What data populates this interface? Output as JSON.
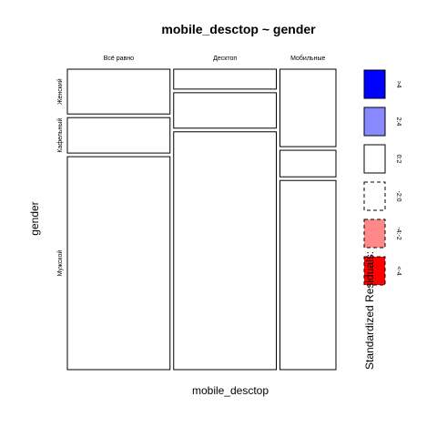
{
  "chart_data": {
    "type": "mosaic",
    "title": "mobile_desctop ~ gender",
    "xlabel": "mobile_desctop",
    "ylabel": "gender",
    "x_categories": [
      "Всё равно",
      "Десктоп",
      "Мобильные"
    ],
    "y_categories": [
      "Женский",
      "Кафельный",
      "Мужской"
    ],
    "x_proportions": [
      0.3333,
      0.3333,
      0.1818
    ],
    "cells": [
      {
        "x": "Всё равно",
        "y": "Женский",
        "proportion": 0.1528,
        "residual_band": "<-2:0"
      },
      {
        "x": "Всё равно",
        "y": "Кафельный",
        "proportion": 0.1208,
        "residual_band": "0:2"
      },
      {
        "x": "Всё равно",
        "y": "Мужской",
        "proportion": 0.7264,
        "residual_band": "<-2:0"
      },
      {
        "x": "Десктоп",
        "y": "Женский",
        "proportion": 0.0679,
        "residual_band": "<-2:0"
      },
      {
        "x": "Десктоп",
        "y": "Кафельный",
        "proportion": 0.1208,
        "residual_band": "0:2"
      },
      {
        "x": "Десктоп",
        "y": "Мужской",
        "proportion": 0.8113,
        "residual_band": "0:2"
      },
      {
        "x": "Мобильные",
        "y": "Женский",
        "proportion": 0.2642,
        "residual_band": "0:2"
      },
      {
        "x": "Мобильные",
        "y": "Кафельный",
        "proportion": 0.0906,
        "residual_band": "<-2:0"
      },
      {
        "x": "Мобильные",
        "y": "Мужской",
        "proportion": 0.6453,
        "residual_band": "<-2:0"
      }
    ],
    "legend": {
      "title": "Standardized Residuals:",
      "entries": [
        {
          "label": ">4",
          "color": "#0000ff",
          "dashed": false
        },
        {
          "label": "2:4",
          "color": "#8888ff",
          "dashed": false
        },
        {
          "label": "0:2",
          "color": "#ffffff",
          "dashed": false
        },
        {
          "label": "-2:0",
          "color": "#ffffff",
          "dashed": true
        },
        {
          "label": "-4:-2",
          "color": "#ff8888",
          "dashed": true
        },
        {
          "label": "<-4",
          "color": "#ff0000",
          "dashed": true
        }
      ],
      "placement": "right"
    },
    "grid": false
  }
}
